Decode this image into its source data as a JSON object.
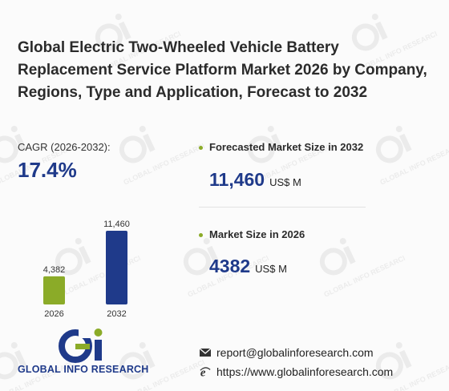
{
  "title": "Global Electric Two-Wheeled Vehicle Battery Replacement Service Platform Market 2026 by Company, Regions, Type and Application, Forecast to 2032",
  "cagr": {
    "label": "CAGR (2026-2032):",
    "value": "17.4%"
  },
  "forecast": {
    "label": "Forecasted Market Size in 2032",
    "value": "11,460",
    "unit": "US$ M"
  },
  "current": {
    "label": "Market Size in 2026",
    "value": "4382",
    "unit": "US$ M"
  },
  "chart_data": {
    "type": "bar",
    "categories": [
      "2026",
      "2032"
    ],
    "values": [
      4382,
      11460
    ],
    "value_labels": [
      "4,382",
      "11,460"
    ],
    "colors": [
      "#8bab28",
      "#1f3a8a"
    ],
    "ylim": [
      0,
      11460
    ],
    "grid": false,
    "legend": "none"
  },
  "watermark_text": "GLOBAL INFO RESEARCH",
  "logo": {
    "text": "GLOBAL INFO RESEARCH",
    "icon": "gi-logo-icon",
    "brand_green": "#8bab28",
    "brand_blue": "#1f3a8a"
  },
  "contact": {
    "email": "report@globalinforesearch.com",
    "email_icon": "envelope-icon",
    "website": "https://www.globalinforesearch.com",
    "website_icon": "browser-e-icon"
  }
}
